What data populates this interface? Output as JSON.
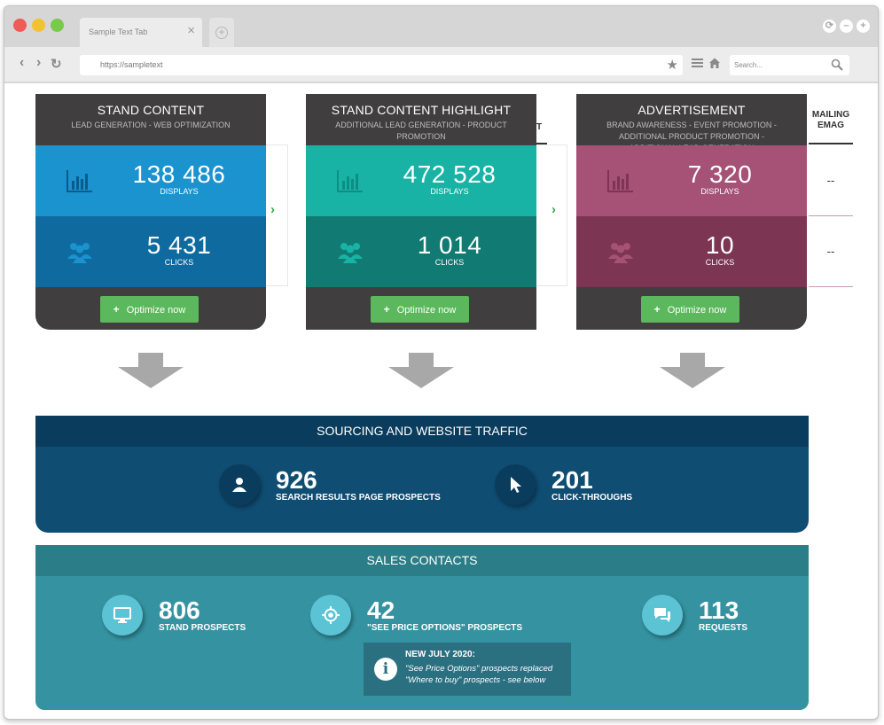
{
  "browser": {
    "tab_title": "Sample Text Tab",
    "url": "https://sampletext",
    "search_placeholder": "Search..."
  },
  "columns": [
    {
      "title": "STAND CONTENT",
      "subtitle": "LEAD GENERATION - WEB OPTIMIZATION",
      "displays_value": "138 486",
      "displays_label": "DISPLAYS",
      "clicks_value": "5 431",
      "clicks_label": "CLICKS",
      "button": "Optimize now",
      "colors": {
        "top": "#1a93cf",
        "bottom": "#0f6aa0",
        "icon": "#0b5a8c"
      }
    },
    {
      "title": "STAND CONTENT HIGHLIGHT",
      "subtitle": "ADDITIONAL LEAD GENERATION - PRODUCT PROMOTION",
      "displays_value": "472 528",
      "displays_label": "DISPLAYS",
      "clicks_value": "1 014",
      "clicks_label": "CLICKS",
      "button": "Optimize now",
      "colors": {
        "top": "#18b3a5",
        "bottom": "#117a72",
        "icon": "#0e8e82"
      }
    },
    {
      "title": "ADVERTISEMENT",
      "subtitle": "BRAND AWARENESS - EVENT PROMOTION - ADDITIONAL PRODUCT PROMOTION - ADDITIONAL LEAD GENERATION",
      "displays_value": "7 320",
      "displays_label": "DISPLAYS",
      "clicks_value": "10",
      "clicks_label": "CLICKS",
      "button": "Optimize now",
      "colors": {
        "top": "#a65176",
        "bottom": "#7c3553",
        "icon": "#8d4062"
      }
    }
  ],
  "mailing": {
    "header_line1": "MAILING",
    "header_line2": "EMAG",
    "displays": "--",
    "clicks": "--"
  },
  "partial_column_letter": "T",
  "sourcing": {
    "title": "SOURCING AND WEBSITE TRAFFIC",
    "search_value": "926",
    "search_label": "SEARCH RESULTS PAGE PROSPECTS",
    "click_value": "201",
    "click_label": "CLICK-THROUGHS"
  },
  "sales": {
    "title": "SALES CONTACTS",
    "stand_value": "806",
    "stand_label": "STAND PROSPECTS",
    "price_value": "42",
    "price_label": "\"SEE PRICE OPTIONS\" PROSPECTS",
    "requests_value": "113",
    "requests_label": "REQUESTS",
    "notice_title": "NEW JULY 2020:",
    "notice_line1": "\"See Price Options\" prospects replaced",
    "notice_line2": "\"Where to buy\" prospects - see below"
  }
}
